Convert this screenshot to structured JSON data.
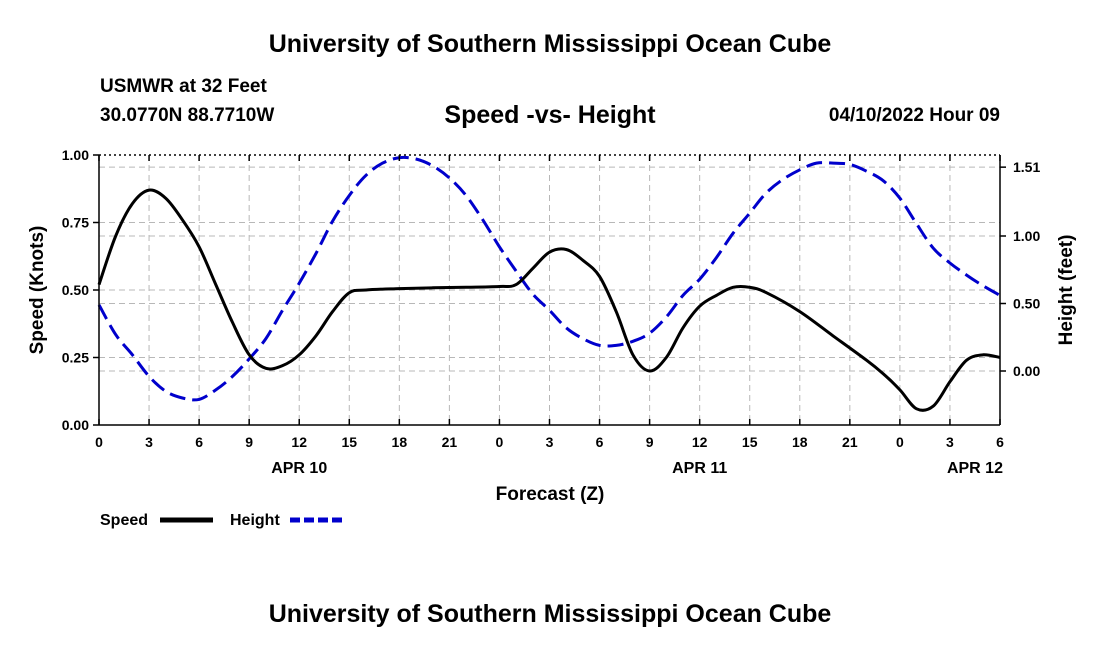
{
  "header": {
    "title": "University of Southern Mississippi Ocean Cube",
    "station": "USMWR at 32 Feet",
    "coordinates": "30.0770N  88.7710W",
    "datetime": "04/10/2022 Hour 09"
  },
  "footer": {
    "title": "University of Southern Mississippi Ocean Cube"
  },
  "chart_data": {
    "type": "line",
    "title": "Speed -vs- Height",
    "xlabel": "Forecast (Z)",
    "ylabel_left": "Speed (Knots)",
    "ylabel_right": "Height (feet)",
    "x_hours_range": [
      0,
      54
    ],
    "x_ticks": [
      {
        "hour": 0,
        "label": "0"
      },
      {
        "hour": 3,
        "label": "3"
      },
      {
        "hour": 6,
        "label": "6"
      },
      {
        "hour": 9,
        "label": "9"
      },
      {
        "hour": 12,
        "label": "12"
      },
      {
        "hour": 15,
        "label": "15"
      },
      {
        "hour": 18,
        "label": "18"
      },
      {
        "hour": 21,
        "label": "21"
      },
      {
        "hour": 24,
        "label": "0"
      },
      {
        "hour": 27,
        "label": "3"
      },
      {
        "hour": 30,
        "label": "6"
      },
      {
        "hour": 33,
        "label": "9"
      },
      {
        "hour": 36,
        "label": "12"
      },
      {
        "hour": 39,
        "label": "15"
      },
      {
        "hour": 42,
        "label": "18"
      },
      {
        "hour": 45,
        "label": "21"
      },
      {
        "hour": 48,
        "label": "0"
      },
      {
        "hour": 51,
        "label": "3"
      },
      {
        "hour": 54,
        "label": "6"
      }
    ],
    "date_labels": [
      {
        "hour": 12,
        "label": "APR 10"
      },
      {
        "hour": 36,
        "label": "APR 11"
      },
      {
        "hour": 52.5,
        "label": "APR 12"
      }
    ],
    "y_left": {
      "min": 0,
      "max": 1.0,
      "ticks": [
        "0.00",
        "0.25",
        "0.50",
        "0.75",
        "1.00"
      ]
    },
    "y_right": {
      "min": -0.4,
      "max": 1.6,
      "ticks": [
        "0.00",
        "0.50",
        "1.00",
        "1.51"
      ]
    },
    "grid": true,
    "series": [
      {
        "name": "Speed",
        "axis": "left",
        "color": "#000000",
        "dash": "solid",
        "x": [
          0,
          1,
          2,
          3,
          4,
          5,
          6,
          7,
          8,
          9,
          10,
          11,
          12,
          13,
          14,
          15,
          16,
          18,
          20,
          22,
          24,
          25,
          26,
          27,
          28,
          29,
          30,
          31,
          32,
          33,
          34,
          35,
          36,
          37,
          38,
          39,
          40,
          42,
          44,
          46,
          47,
          48,
          49,
          50,
          51,
          52,
          53,
          54
        ],
        "values": [
          0.52,
          0.7,
          0.82,
          0.87,
          0.84,
          0.76,
          0.66,
          0.52,
          0.38,
          0.26,
          0.21,
          0.22,
          0.26,
          0.33,
          0.42,
          0.49,
          0.5,
          0.505,
          0.508,
          0.51,
          0.513,
          0.52,
          0.58,
          0.64,
          0.65,
          0.61,
          0.55,
          0.42,
          0.26,
          0.2,
          0.25,
          0.36,
          0.44,
          0.48,
          0.51,
          0.51,
          0.49,
          0.42,
          0.33,
          0.24,
          0.19,
          0.13,
          0.06,
          0.07,
          0.16,
          0.24,
          0.26,
          0.25
        ]
      },
      {
        "name": "Height",
        "axis": "right",
        "color": "#0000cc",
        "dash": "dashed",
        "x": [
          0,
          1,
          2,
          3,
          4,
          5,
          6,
          7,
          8,
          9,
          10,
          11,
          12,
          13,
          14,
          15,
          16,
          17,
          18,
          19,
          20,
          21,
          22,
          23,
          24,
          25,
          26,
          27,
          28,
          29,
          30,
          31,
          32,
          33,
          34,
          35,
          36,
          37,
          38,
          39,
          40,
          41,
          42,
          43,
          44,
          45,
          46,
          47,
          48,
          49,
          50,
          51,
          52,
          53,
          54
        ],
        "values": [
          0.49,
          0.27,
          0.12,
          -0.04,
          -0.15,
          -0.2,
          -0.21,
          -0.14,
          -0.04,
          0.09,
          0.24,
          0.45,
          0.65,
          0.87,
          1.11,
          1.3,
          1.45,
          1.54,
          1.58,
          1.57,
          1.52,
          1.43,
          1.3,
          1.12,
          0.92,
          0.74,
          0.57,
          0.45,
          0.32,
          0.24,
          0.19,
          0.19,
          0.22,
          0.28,
          0.4,
          0.56,
          0.68,
          0.84,
          1.02,
          1.17,
          1.32,
          1.42,
          1.49,
          1.54,
          1.54,
          1.53,
          1.48,
          1.41,
          1.28,
          1.09,
          0.91,
          0.8,
          0.71,
          0.63,
          0.56
        ]
      }
    ],
    "legend": {
      "position": "bottom-left",
      "entries": [
        "Speed",
        "Height"
      ]
    }
  }
}
